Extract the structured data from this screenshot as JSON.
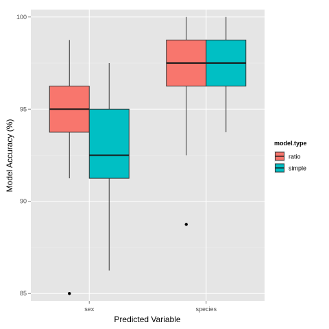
{
  "chart_data": {
    "type": "boxplot",
    "title": "",
    "xlabel": "Predicted Variable",
    "ylabel": "Model Accuracy (%)",
    "ylim": [
      84.6,
      100.4
    ],
    "y_ticks": [
      85,
      90,
      95,
      100
    ],
    "categories": [
      "sex",
      "species"
    ],
    "grid": true,
    "legend": {
      "title": "model.type",
      "placement": "right",
      "entries": [
        "ratio",
        "simple"
      ]
    },
    "series": [
      {
        "name": "ratio",
        "color": "#F8766D",
        "boxes": [
          {
            "category": "sex",
            "min": 91.25,
            "q1": 93.75,
            "median": 95.0,
            "q3": 96.25,
            "max": 98.75,
            "outliers": [
              85.0
            ]
          },
          {
            "category": "species",
            "min": 92.5,
            "q1": 96.25,
            "median": 97.5,
            "q3": 98.75,
            "max": 100.0,
            "outliers": [
              88.75
            ]
          }
        ]
      },
      {
        "name": "simple",
        "color": "#00BFC4",
        "boxes": [
          {
            "category": "sex",
            "min": 86.25,
            "q1": 91.25,
            "median": 92.5,
            "q3": 95.0,
            "max": 97.5,
            "outliers": []
          },
          {
            "category": "species",
            "min": 93.75,
            "q1": 96.25,
            "median": 97.5,
            "q3": 98.75,
            "max": 100.0,
            "outliers": []
          }
        ]
      }
    ]
  }
}
